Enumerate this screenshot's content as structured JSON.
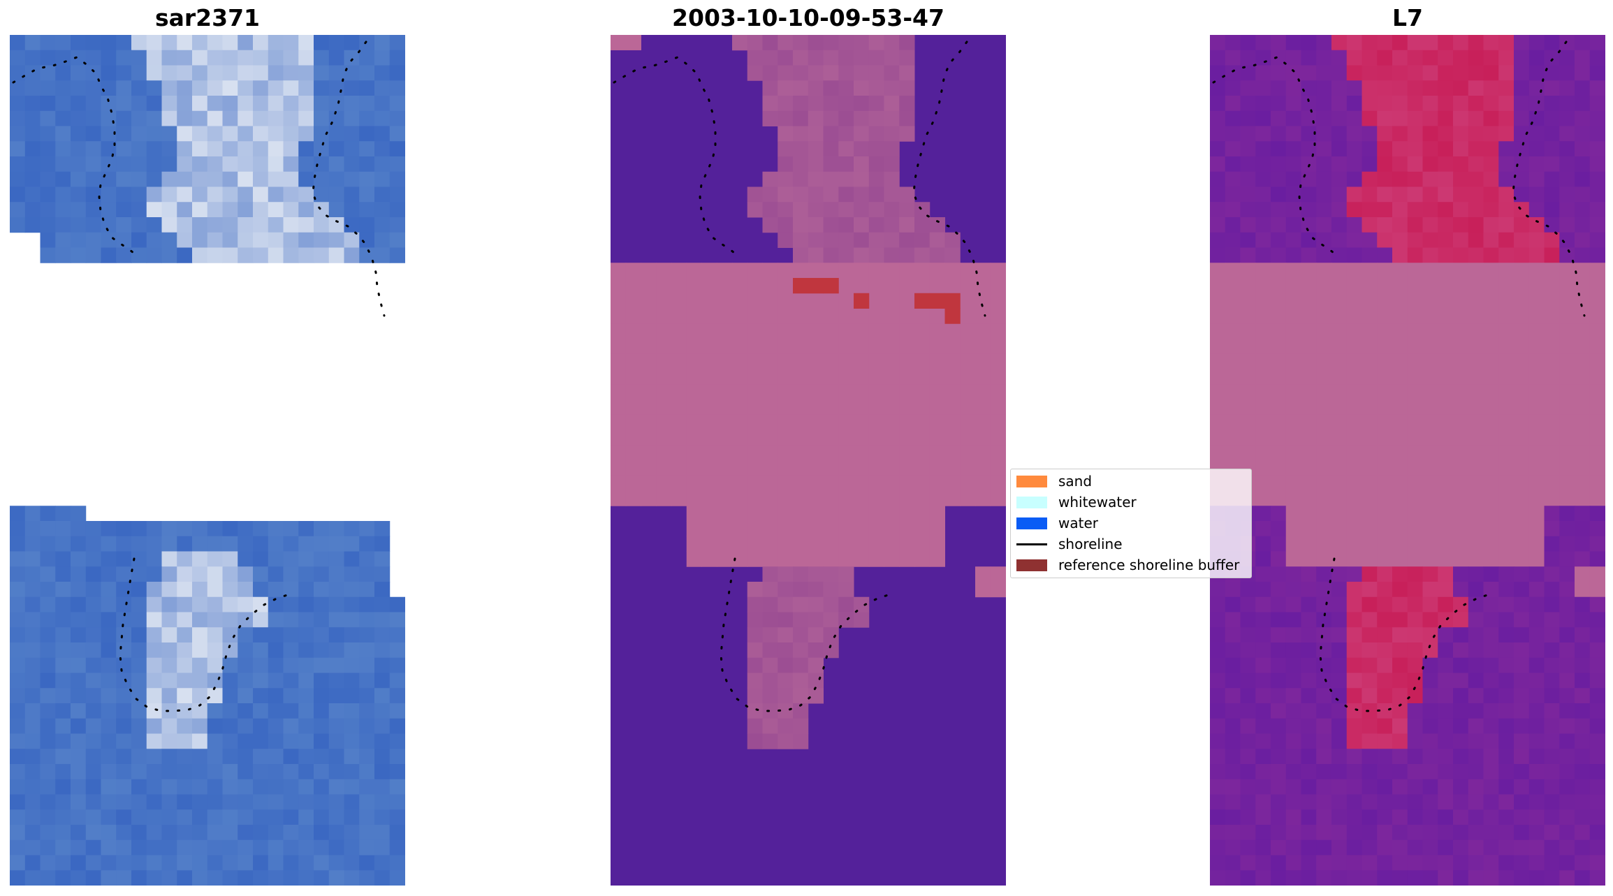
{
  "panels": [
    {
      "title": "sar2371"
    },
    {
      "title": "2003-10-10-09-53-47"
    },
    {
      "title": "L7"
    }
  ],
  "legend": {
    "items": [
      {
        "label": "sand",
        "color": "#ff8a3d",
        "kind": "patch"
      },
      {
        "label": "whitewater",
        "color": "#c8ffff",
        "kind": "patch"
      },
      {
        "label": "water",
        "color": "#0a5cf5",
        "kind": "patch"
      },
      {
        "label": "shoreline",
        "color": "#000000",
        "kind": "line"
      },
      {
        "label": "reference shoreline buffer",
        "color": "#8f3131",
        "kind": "patch"
      }
    ]
  },
  "colors": {
    "rgb_water": "#3b68c2",
    "rgb_bright": "#dfe6f2",
    "class_water": "#54219a",
    "class_mask": "#bb6797",
    "class_land_overlay": "#9b4d93",
    "class_buffer": "#c0363e",
    "mndwi_low": "#6a1ea0",
    "mndwi_high": "#c8205a",
    "cloud_mask": "#bb6797"
  }
}
